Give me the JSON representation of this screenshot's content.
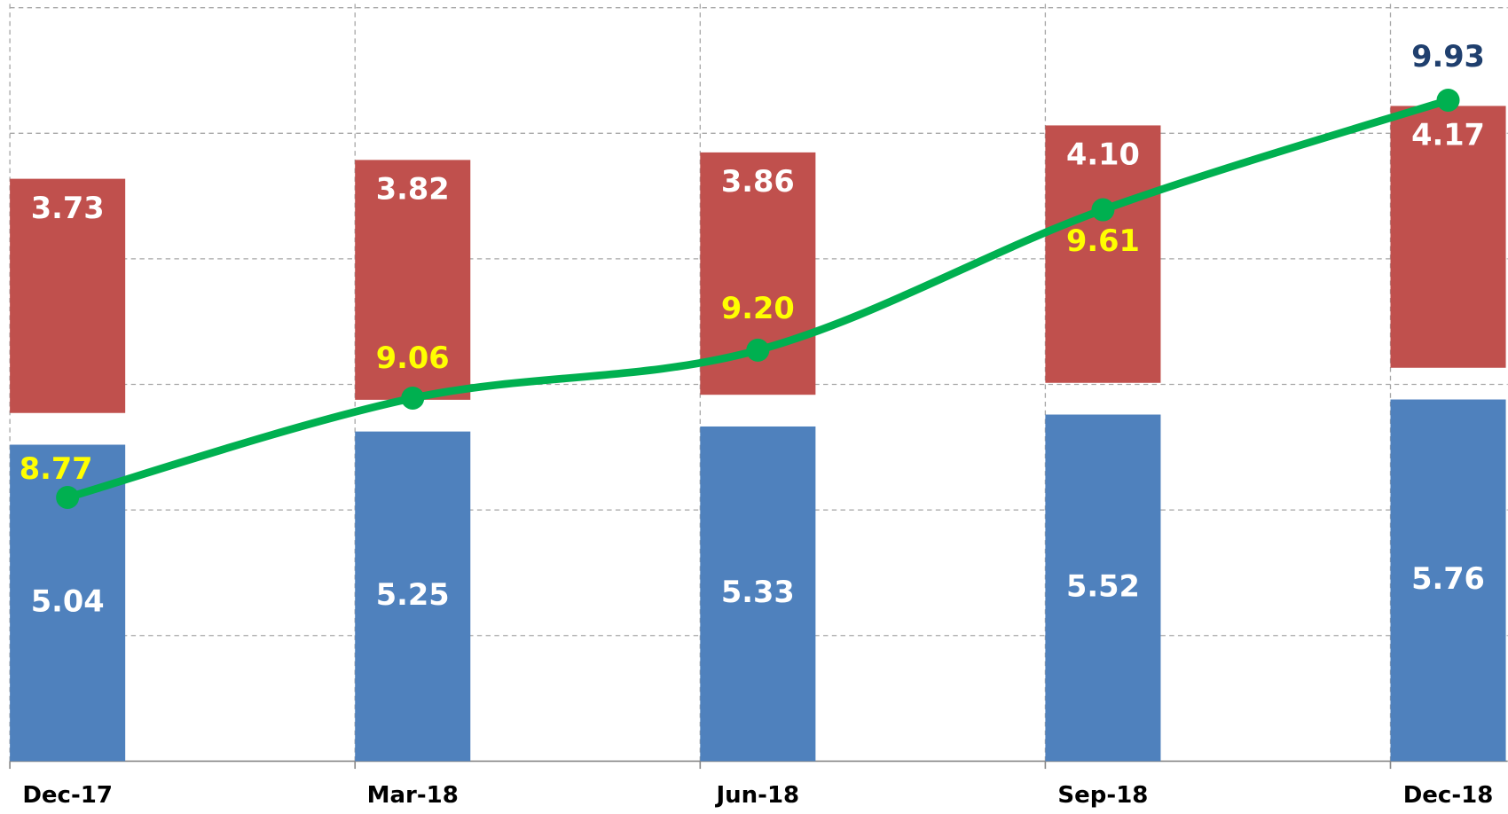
{
  "chart_data": {
    "type": "bar",
    "categories": [
      "Dec-17",
      "Mar-18",
      "Jun-18",
      "Sep-18",
      "Dec-18"
    ],
    "stacked": true,
    "series": [
      {
        "type": "bar",
        "color": "#4f81bd",
        "label_color": "#ffffff",
        "values": [
          5.04,
          5.25,
          5.33,
          5.52,
          5.76
        ]
      },
      {
        "type": "bar",
        "color": "#c0504d",
        "label_color": "#ffffff",
        "values": [
          3.73,
          3.82,
          3.86,
          4.1,
          4.17
        ],
        "value_labels": [
          "3.73",
          "3.82",
          "3.86",
          "4.10",
          "4.17"
        ]
      },
      {
        "type": "line",
        "axis": "y2",
        "color": "#00b050",
        "label_colors": [
          "#ffff00",
          "#ffff00",
          "#ffff00",
          "#ffff00",
          "#1f3f6e"
        ],
        "values": [
          8.77,
          9.06,
          9.2,
          9.61,
          9.93
        ],
        "value_labels": [
          "8.77",
          "9.06",
          "9.20",
          "9.61",
          "9.93"
        ]
      }
    ],
    "ylim": [
      0,
      12
    ],
    "yticks": [
      0,
      2,
      4,
      6,
      8,
      10,
      12
    ],
    "y2lim": [
      8,
      10.2
    ],
    "grid": true
  }
}
